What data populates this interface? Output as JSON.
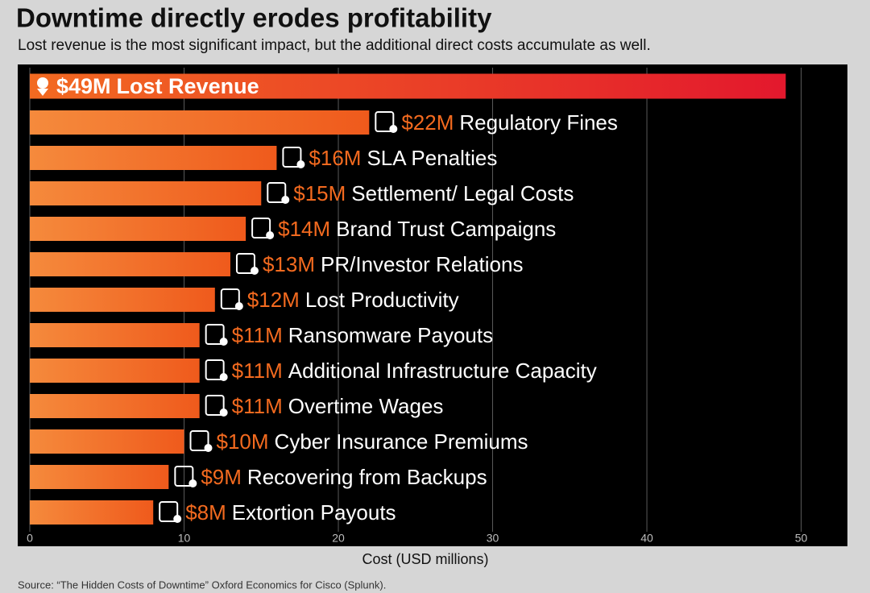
{
  "chart_data": {
    "type": "bar",
    "orientation": "horizontal",
    "title": "Downtime directly erodes profitability",
    "subtitle": "Lost revenue is the most significant impact, but the additional direct costs accumulate as well.",
    "categories": [
      "Lost Revenue",
      "Regulatory Fines",
      "SLA Penalties",
      "Settlement/ Legal Costs",
      "Brand Trust Campaigns",
      "PR/Investor Relations",
      "Lost Productivity",
      "Ransomware Payouts",
      "Additional Infrastructure Capacity",
      "Overtime Wages",
      "Cyber Insurance Premiums",
      "Recovering from Backups",
      "Extortion Payouts"
    ],
    "values": [
      49,
      22,
      16,
      15,
      14,
      13,
      12,
      11,
      11,
      11,
      10,
      9,
      8
    ],
    "value_labels": [
      "$49M",
      "$22M",
      "$16M",
      "$15M",
      "$14M",
      "$13M",
      "$12M",
      "$11M",
      "$11M",
      "$11M",
      "$10M",
      "$9M",
      "$8M"
    ],
    "color": "#f36a1f",
    "highlight_color": "#e3182d",
    "highlight_index": 0,
    "xlabel": "Cost (USD millions)",
    "xlim": [
      0,
      53
    ],
    "xticks": [
      0,
      10,
      20,
      30,
      40,
      50
    ],
    "grid": true,
    "source": "Source: “The Hidden Costs of Downtime” Oxford Economics for Cisco (Splunk)."
  }
}
